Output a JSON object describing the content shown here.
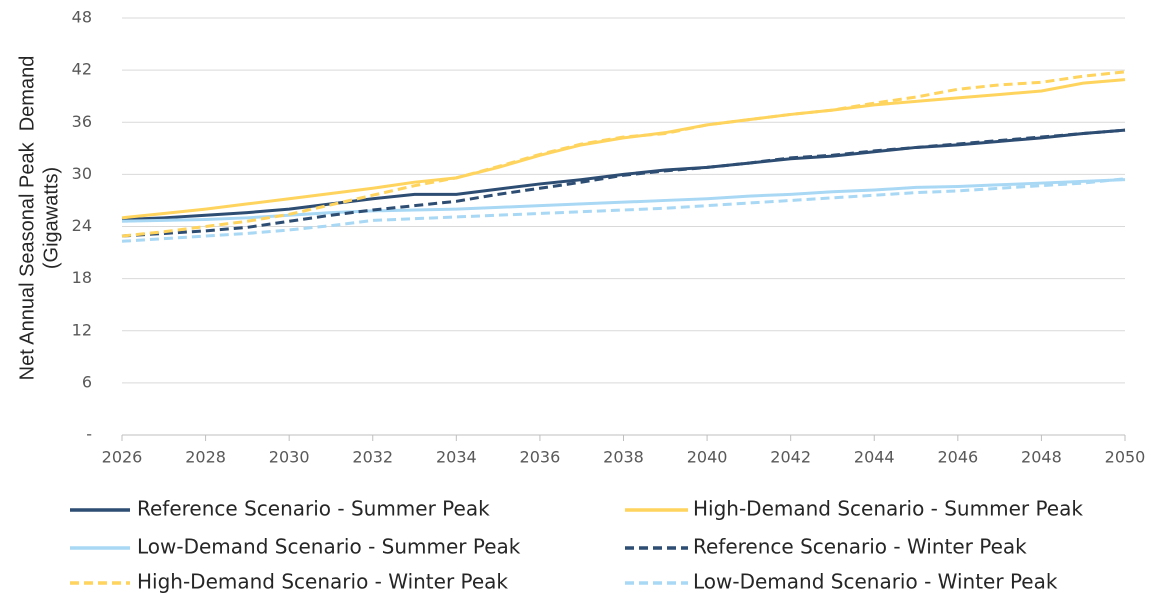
{
  "chart_data": {
    "type": "line",
    "ylabel": [
      "Net Annual Seasonal Peak  Demand",
      "(Gigawatts)"
    ],
    "x": [
      2026,
      2027,
      2028,
      2029,
      2030,
      2031,
      2032,
      2033,
      2034,
      2035,
      2036,
      2037,
      2038,
      2039,
      2040,
      2041,
      2042,
      2043,
      2044,
      2045,
      2046,
      2047,
      2048,
      2049,
      2050
    ],
    "xlim": [
      2026,
      2050
    ],
    "xticks": [
      2026,
      2028,
      2030,
      2032,
      2034,
      2036,
      2038,
      2040,
      2042,
      2044,
      2046,
      2048,
      2050
    ],
    "ylim": [
      0,
      48
    ],
    "yticks": [
      {
        "value": 0,
        "label": "-"
      },
      6,
      12,
      18,
      24,
      30,
      36,
      42,
      48
    ],
    "grid": true,
    "legend": "bottom",
    "series": [
      {
        "name": "Reference Scenario - Summer Peak",
        "color": "#2e4d73",
        "dashed": false,
        "values": [
          24.8,
          25.0,
          25.3,
          25.6,
          26.0,
          26.6,
          27.2,
          27.7,
          27.7,
          28.3,
          28.9,
          29.4,
          30.0,
          30.5,
          30.8,
          31.3,
          31.8,
          32.1,
          32.6,
          33.1,
          33.4,
          33.8,
          34.2,
          34.7,
          35.1
        ]
      },
      {
        "name": "High-Demand Scenario - Summer Peak",
        "color": "#ffd45e",
        "dashed": false,
        "values": [
          25.0,
          25.5,
          26.0,
          26.6,
          27.2,
          27.8,
          28.4,
          29.1,
          29.6,
          30.8,
          32.2,
          33.4,
          34.2,
          34.8,
          35.7,
          36.3,
          36.9,
          37.4,
          38.0,
          38.4,
          38.8,
          39.2,
          39.6,
          40.5,
          40.9
        ]
      },
      {
        "name": "Low-Demand Scenario - Summer Peak",
        "color": "#a9d8f5",
        "dashed": false,
        "values": [
          24.6,
          24.7,
          24.8,
          25.0,
          25.3,
          25.6,
          25.8,
          25.9,
          26.0,
          26.2,
          26.4,
          26.6,
          26.8,
          27.0,
          27.2,
          27.5,
          27.7,
          28.0,
          28.2,
          28.5,
          28.6,
          28.8,
          29.0,
          29.2,
          29.4
        ]
      },
      {
        "name": "Reference Scenario - Winter Peak",
        "color": "#2e4d73",
        "dashed": true,
        "values": [
          22.9,
          23.2,
          23.5,
          23.9,
          24.6,
          25.3,
          25.9,
          26.4,
          26.9,
          27.7,
          28.4,
          29.1,
          29.9,
          30.4,
          30.8,
          31.3,
          31.9,
          32.2,
          32.7,
          33.1,
          33.5,
          33.9,
          34.3,
          34.7,
          35.1
        ]
      },
      {
        "name": "High-Demand Scenario - Winter Peak",
        "color": "#ffd45e",
        "dashed": true,
        "values": [
          22.9,
          23.4,
          24.0,
          24.6,
          25.4,
          26.5,
          27.6,
          28.7,
          29.6,
          30.9,
          32.3,
          33.5,
          34.3,
          34.7,
          35.7,
          36.3,
          36.9,
          37.4,
          38.2,
          38.9,
          39.8,
          40.3,
          40.6,
          41.3,
          41.8
        ]
      },
      {
        "name": "Low-Demand Scenario - Winter Peak",
        "color": "#a9d8f5",
        "dashed": true,
        "values": [
          22.3,
          22.6,
          22.9,
          23.2,
          23.6,
          24.1,
          24.7,
          24.9,
          25.1,
          25.3,
          25.5,
          25.7,
          25.9,
          26.1,
          26.4,
          26.7,
          27.0,
          27.3,
          27.6,
          27.9,
          28.1,
          28.4,
          28.7,
          29.0,
          29.5
        ]
      }
    ]
  }
}
